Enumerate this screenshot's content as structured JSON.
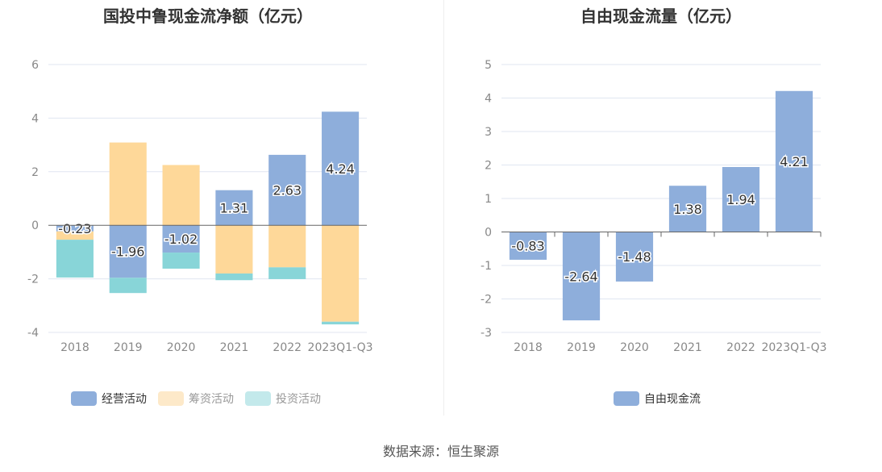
{
  "chart_data": [
    {
      "type": "bar",
      "stacked": true,
      "title": "国投中鲁现金流净额（亿元）",
      "categories": [
        "2018",
        "2019",
        "2020",
        "2021",
        "2022",
        "2023Q1-Q3"
      ],
      "ylim": [
        -4,
        6
      ],
      "yticks": [
        -4,
        -2,
        0,
        2,
        4,
        6
      ],
      "series": [
        {
          "name": "经营活动",
          "color": "#8eaedb",
          "values": [
            -0.23,
            -1.96,
            -1.02,
            1.31,
            2.63,
            4.24
          ],
          "labeled": true
        },
        {
          "name": "筹资活动",
          "color": "#fed899",
          "values": [
            -0.31,
            3.09,
            2.25,
            -1.8,
            -1.57,
            -3.6
          ]
        },
        {
          "name": "投资活动",
          "color": "#88d5d8",
          "values": [
            -1.41,
            -0.57,
            -0.6,
            -0.25,
            -0.44,
            -0.1
          ]
        }
      ],
      "legend_position": "bottom",
      "grid": true
    },
    {
      "type": "bar",
      "title": "自由现金流量（亿元）",
      "categories": [
        "2018",
        "2019",
        "2020",
        "2021",
        "2022",
        "2023Q1-Q3"
      ],
      "ylim": [
        -3,
        5
      ],
      "yticks": [
        -3,
        -2,
        -1,
        0,
        1,
        2,
        3,
        4,
        5
      ],
      "series": [
        {
          "name": "自由现金流",
          "color": "#8eaedb",
          "values": [
            -0.83,
            -2.64,
            -1.48,
            1.38,
            1.94,
            4.21
          ],
          "labeled": true
        }
      ],
      "legend_position": "bottom",
      "grid": true
    }
  ],
  "legend_colors": [
    "#8eaedb",
    "#fde9c9",
    "#c3e9eb"
  ],
  "legend_text_colors": [
    "#333333",
    "#999999",
    "#999999"
  ],
  "source": "数据来源：恒生聚源"
}
